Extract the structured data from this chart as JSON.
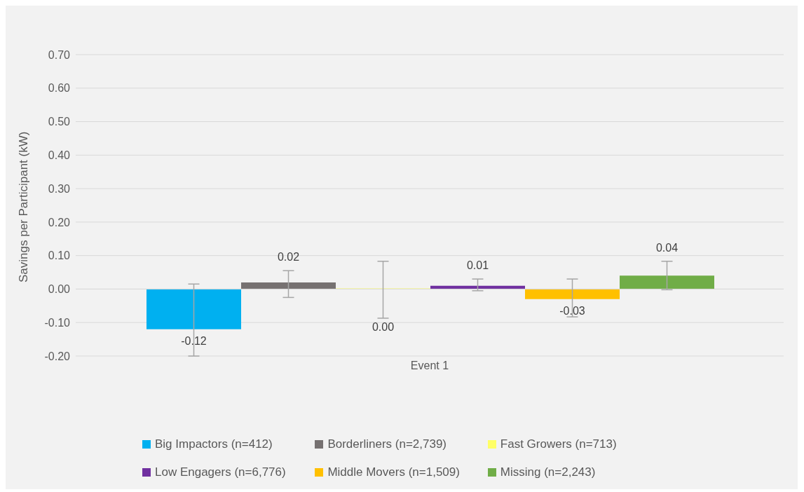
{
  "chart_data": {
    "type": "bar",
    "ylabel": "Savings per Participant (kW)",
    "categories": [
      "Event 1"
    ],
    "series": [
      {
        "name": "Big Impactors (n=412)",
        "color": "#00b0f0",
        "values": [
          -0.12
        ],
        "errors": [
          [
            -0.2,
            0.015
          ]
        ],
        "value_labels": [
          "-0.12"
        ]
      },
      {
        "name": "Borderliners (n=2,739)",
        "color": "#767171",
        "values": [
          0.02
        ],
        "errors": [
          [
            -0.025,
            0.055
          ]
        ],
        "value_labels": [
          "0.02"
        ]
      },
      {
        "name": "Fast Growers (n=713)",
        "color": "#ffff66",
        "values": [
          0.0
        ],
        "errors": [
          [
            -0.087,
            0.083
          ]
        ],
        "value_labels": [
          "0.00"
        ]
      },
      {
        "name": "Low Engagers (n=6,776)",
        "color": "#7030a0",
        "values": [
          0.01
        ],
        "errors": [
          [
            -0.005,
            0.03
          ]
        ],
        "value_labels": [
          "0.01"
        ]
      },
      {
        "name": "Middle Movers (n=1,509)",
        "color": "#ffc000",
        "values": [
          -0.03
        ],
        "errors": [
          [
            -0.083,
            0.03
          ]
        ],
        "value_labels": [
          "-0.03"
        ]
      },
      {
        "name": "Missing (n=2,243)",
        "color": "#70ad47",
        "values": [
          0.04
        ],
        "errors": [
          [
            -0.002,
            0.083
          ]
        ],
        "value_labels": [
          "0.04"
        ]
      }
    ],
    "ylim": [
      -0.2,
      0.7
    ],
    "yticks": [
      {
        "value": -0.2,
        "label": "-0.20"
      },
      {
        "value": -0.1,
        "label": "-0.10"
      },
      {
        "value": 0,
        "label": "0.00"
      },
      {
        "value": 0.1,
        "label": "0.10"
      },
      {
        "value": 0.2,
        "label": "0.20"
      },
      {
        "value": 0.3,
        "label": "0.30"
      },
      {
        "value": 0.4,
        "label": "0.40"
      },
      {
        "value": 0.5,
        "label": "0.50"
      },
      {
        "value": 0.6,
        "label": "0.60"
      },
      {
        "value": 0.7,
        "label": "0.70"
      }
    ],
    "grid": "y",
    "legend": "bottom"
  }
}
